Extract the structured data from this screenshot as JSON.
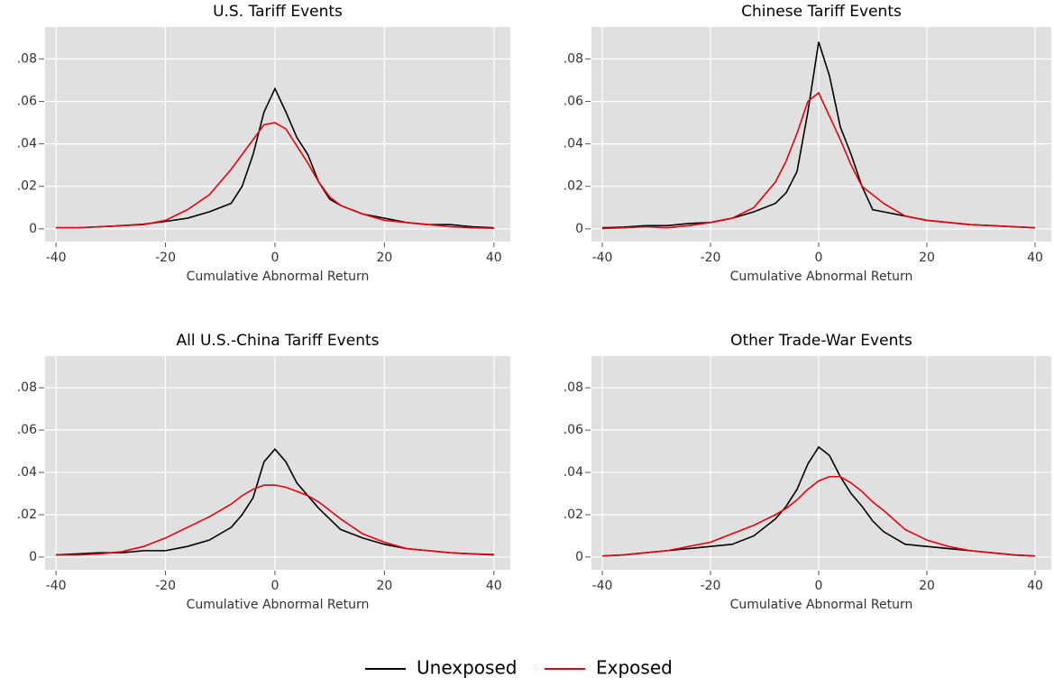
{
  "chart_data": [
    {
      "type": "line",
      "title": "U.S. Tariff Events",
      "xlabel": "Cumulative Abnormal Return",
      "x": [
        -40,
        -36,
        -32,
        -28,
        -24,
        -20,
        -16,
        -12,
        -8,
        -6,
        -4,
        -2,
        0,
        2,
        4,
        6,
        8,
        10,
        12,
        16,
        20,
        24,
        28,
        32,
        36,
        40
      ],
      "series": [
        {
          "name": "Unexposed",
          "color": "#000000",
          "values": [
            0.0005,
            0.0005,
            0.001,
            0.0015,
            0.0022,
            0.0035,
            0.005,
            0.008,
            0.012,
            0.02,
            0.035,
            0.055,
            0.066,
            0.055,
            0.043,
            0.035,
            0.022,
            0.014,
            0.011,
            0.007,
            0.005,
            0.003,
            0.002,
            0.002,
            0.001,
            0.0005
          ]
        },
        {
          "name": "Exposed",
          "color": "#e8000b",
          "values": [
            0.0005,
            0.0005,
            0.001,
            0.0015,
            0.002,
            0.004,
            0.009,
            0.016,
            0.028,
            0.035,
            0.042,
            0.049,
            0.05,
            0.047,
            0.039,
            0.031,
            0.022,
            0.015,
            0.011,
            0.007,
            0.004,
            0.003,
            0.002,
            0.001,
            0.0005,
            0.0003
          ]
        }
      ],
      "xlim": [
        -42,
        43
      ],
      "ylim": [
        -0.006,
        0.095
      ],
      "xticks": [
        -40,
        -20,
        0,
        20,
        40
      ],
      "yticks": [
        0,
        {
          "value": 0.02,
          "label": ".02"
        },
        {
          "value": 0.04,
          "label": ".04"
        },
        {
          "value": 0.06,
          "label": ".06"
        },
        {
          "value": 0.08,
          "label": ".08"
        }
      ],
      "grid": true
    },
    {
      "type": "line",
      "title": "Chinese Tariff Events",
      "xlabel": "Cumulative Abnormal Return",
      "x": [
        -40,
        -36,
        -32,
        -28,
        -24,
        -20,
        -16,
        -12,
        -8,
        -6,
        -4,
        -2,
        0,
        2,
        4,
        6,
        8,
        10,
        12,
        16,
        20,
        24,
        28,
        32,
        36,
        40
      ],
      "series": [
        {
          "color": "#000000",
          "values": [
            0.0005,
            0.0008,
            0.0015,
            0.0015,
            0.0025,
            0.003,
            0.005,
            0.008,
            0.012,
            0.017,
            0.027,
            0.055,
            0.088,
            0.072,
            0.048,
            0.035,
            0.02,
            0.009,
            0.008,
            0.006,
            0.004,
            0.003,
            0.002,
            0.0015,
            0.001,
            0.0005
          ]
        },
        {
          "color": "#e8000b",
          "values": [
            0.0002,
            0.0005,
            0.001,
            0.0005,
            0.0015,
            0.003,
            0.005,
            0.01,
            0.022,
            0.032,
            0.045,
            0.06,
            0.064,
            0.053,
            0.042,
            0.03,
            0.02,
            0.016,
            0.012,
            0.006,
            0.004,
            0.003,
            0.002,
            0.0015,
            0.001,
            0.0005
          ]
        }
      ],
      "xlim": [
        -42,
        43
      ],
      "ylim": [
        -0.006,
        0.095
      ],
      "xticks": [
        -40,
        -20,
        0,
        20,
        40
      ],
      "yticks": [
        0,
        {
          "value": 0.02,
          "label": ".02"
        },
        {
          "value": 0.04,
          "label": ".04"
        },
        {
          "value": 0.06,
          "label": ".06"
        },
        {
          "value": 0.08,
          "label": ".08"
        }
      ],
      "grid": true
    },
    {
      "type": "line",
      "title": "All U.S.-China Tariff Events",
      "xlabel": "Cumulative Abnormal Return",
      "x": [
        -40,
        -36,
        -32,
        -28,
        -24,
        -20,
        -16,
        -12,
        -8,
        -6,
        -4,
        -2,
        0,
        2,
        4,
        6,
        8,
        10,
        12,
        16,
        20,
        24,
        28,
        32,
        36,
        40
      ],
      "series": [
        {
          "color": "#000000",
          "values": [
            0.001,
            0.0015,
            0.002,
            0.002,
            0.003,
            0.003,
            0.005,
            0.008,
            0.014,
            0.02,
            0.028,
            0.045,
            0.051,
            0.045,
            0.035,
            0.029,
            0.023,
            0.018,
            0.013,
            0.009,
            0.006,
            0.004,
            0.003,
            0.002,
            0.0015,
            0.001
          ]
        },
        {
          "color": "#e8000b",
          "values": [
            0.001,
            0.001,
            0.0015,
            0.0025,
            0.005,
            0.009,
            0.014,
            0.019,
            0.025,
            0.029,
            0.032,
            0.034,
            0.034,
            0.033,
            0.031,
            0.029,
            0.026,
            0.022,
            0.018,
            0.011,
            0.007,
            0.004,
            0.003,
            0.002,
            0.0015,
            0.0012
          ]
        }
      ],
      "xlim": [
        -42,
        43
      ],
      "ylim": [
        -0.006,
        0.095
      ],
      "xticks": [
        -40,
        -20,
        0,
        20,
        40
      ],
      "yticks": [
        0,
        {
          "value": 0.02,
          "label": ".02"
        },
        {
          "value": 0.04,
          "label": ".04"
        },
        {
          "value": 0.06,
          "label": ".06"
        },
        {
          "value": 0.08,
          "label": ".08"
        }
      ],
      "grid": true
    },
    {
      "type": "line",
      "title": "Other Trade-War Events",
      "xlabel": "Cumulative Abnormal Return",
      "x": [
        -40,
        -36,
        -32,
        -28,
        -24,
        -20,
        -16,
        -12,
        -8,
        -6,
        -4,
        -2,
        0,
        2,
        4,
        6,
        8,
        10,
        12,
        16,
        20,
        24,
        28,
        32,
        36,
        40
      ],
      "series": [
        {
          "color": "#000000",
          "values": [
            0.0005,
            0.001,
            0.002,
            0.003,
            0.004,
            0.005,
            0.006,
            0.01,
            0.018,
            0.024,
            0.032,
            0.044,
            0.052,
            0.048,
            0.038,
            0.03,
            0.024,
            0.017,
            0.012,
            0.006,
            0.005,
            0.004,
            0.003,
            0.002,
            0.001,
            0.0005
          ]
        },
        {
          "color": "#e8000b",
          "values": [
            0.0005,
            0.001,
            0.002,
            0.003,
            0.005,
            0.007,
            0.011,
            0.015,
            0.02,
            0.023,
            0.027,
            0.032,
            0.036,
            0.038,
            0.038,
            0.035,
            0.031,
            0.026,
            0.022,
            0.013,
            0.008,
            0.005,
            0.003,
            0.002,
            0.001,
            0.0005
          ]
        }
      ],
      "xlim": [
        -42,
        43
      ],
      "ylim": [
        -0.006,
        0.095
      ],
      "xticks": [
        -40,
        -20,
        0,
        20,
        40
      ],
      "yticks": [
        0,
        {
          "value": 0.02,
          "label": ".02"
        },
        {
          "value": 0.04,
          "label": ".04"
        },
        {
          "value": 0.06,
          "label": ".06"
        },
        {
          "value": 0.08,
          "label": ".08"
        }
      ],
      "grid": true
    }
  ]
}
